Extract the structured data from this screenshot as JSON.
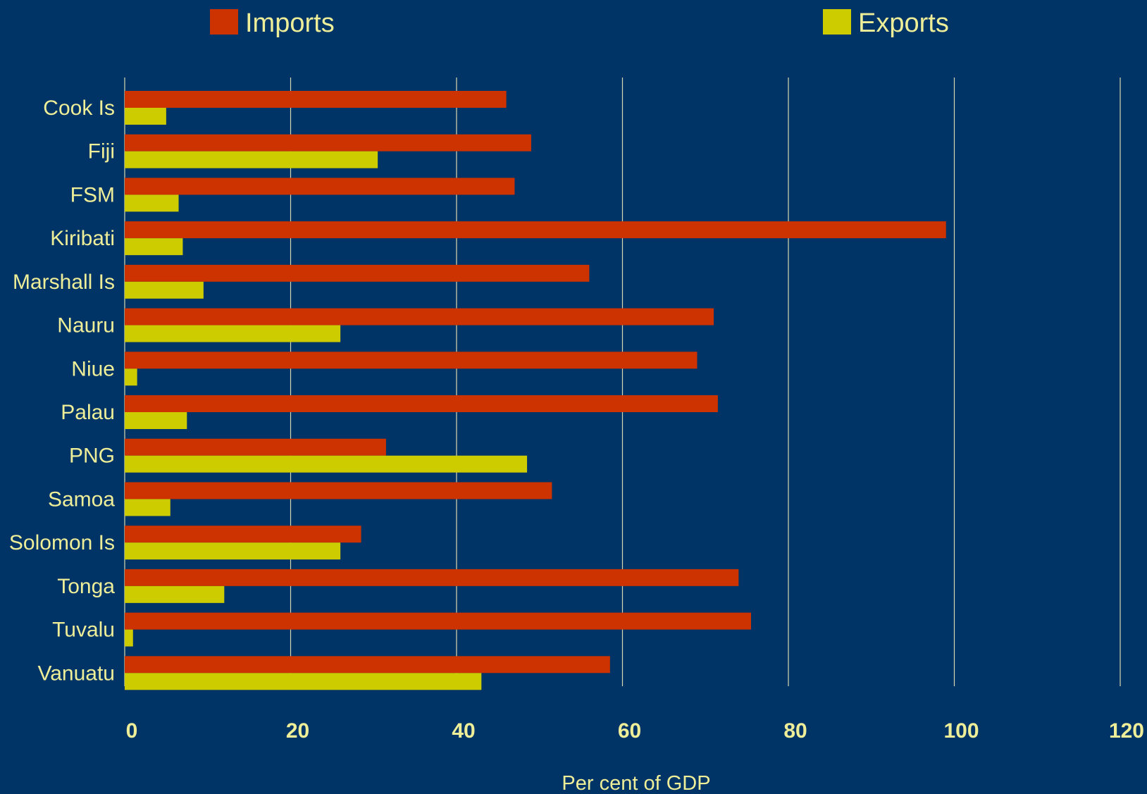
{
  "colors": {
    "background": "#003366",
    "imports": "#cc3300",
    "exports": "#cccc00",
    "text": "#eeee99",
    "grid": "#d8d8b0"
  },
  "chart_data": {
    "type": "bar",
    "orientation": "horizontal",
    "categories": [
      "Cook Is",
      "Fiji",
      "FSM",
      "Kiribati",
      "Marshall Is",
      "Nauru",
      "Niue",
      "Palau",
      "PNG",
      "Samoa",
      "Solomon Is",
      "Tonga",
      "Tuvalu",
      "Vanuatu"
    ],
    "series": [
      {
        "name": "Imports",
        "color": "#cc3300",
        "values": [
          46,
          49,
          47,
          99,
          56,
          71,
          69,
          71.5,
          31.5,
          51.5,
          28.5,
          74,
          75.5,
          58.5
        ]
      },
      {
        "name": "Exports",
        "color": "#cccc00",
        "values": [
          5,
          30.5,
          6.5,
          7,
          9.5,
          26,
          1.5,
          7.5,
          48.5,
          5.5,
          26,
          12,
          1,
          43
        ]
      }
    ],
    "xlabel": "Per cent of GDP",
    "ylabel": "",
    "xlim": [
      0,
      120
    ],
    "xticks": [
      0,
      20,
      40,
      60,
      80,
      100,
      120
    ],
    "grid": "vertical",
    "legend": "top"
  }
}
